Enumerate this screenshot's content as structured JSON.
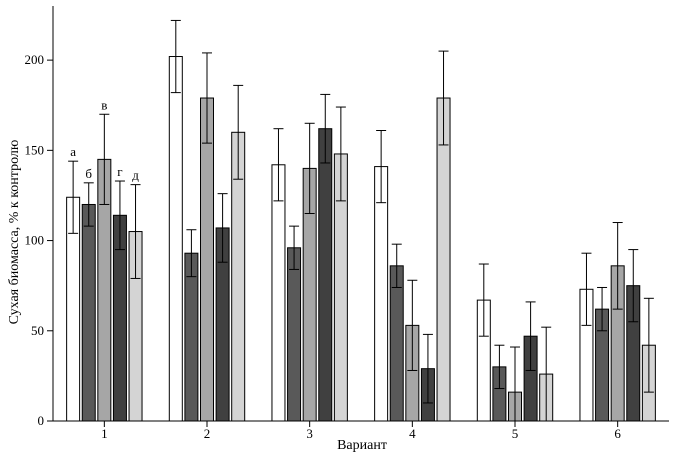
{
  "chart_data": {
    "type": "bar",
    "title": "",
    "xlabel": "Вариант",
    "ylabel": "Сухая биомасса, % к контролю",
    "ylim": [
      0,
      230
    ],
    "yticks": [
      0,
      50,
      100,
      150,
      200
    ],
    "grid": false,
    "legend": "none",
    "categories": [
      "1",
      "2",
      "3",
      "4",
      "5",
      "6"
    ],
    "series": [
      {
        "name": "а",
        "color": "#ffffff",
        "values": [
          124,
          202,
          142,
          141,
          67,
          73
        ],
        "errors": [
          20,
          20,
          20,
          20,
          20,
          20
        ]
      },
      {
        "name": "б",
        "color": "#595959",
        "values": [
          120,
          93,
          96,
          86,
          30,
          62
        ],
        "errors": [
          12,
          13,
          12,
          12,
          12,
          12
        ]
      },
      {
        "name": "в",
        "color": "#a6a6a6",
        "values": [
          145,
          179,
          140,
          53,
          16,
          86
        ],
        "errors": [
          25,
          25,
          25,
          25,
          25,
          24
        ]
      },
      {
        "name": "г",
        "color": "#404040",
        "values": [
          114,
          107,
          162,
          29,
          47,
          75
        ],
        "errors": [
          19,
          19,
          19,
          19,
          19,
          20
        ]
      },
      {
        "name": "д",
        "color": "#d4d4d4",
        "values": [
          105,
          160,
          148,
          179,
          26,
          42
        ],
        "errors": [
          26,
          26,
          26,
          26,
          26,
          26
        ]
      }
    ],
    "series_labels_shown_in_group": "1"
  }
}
